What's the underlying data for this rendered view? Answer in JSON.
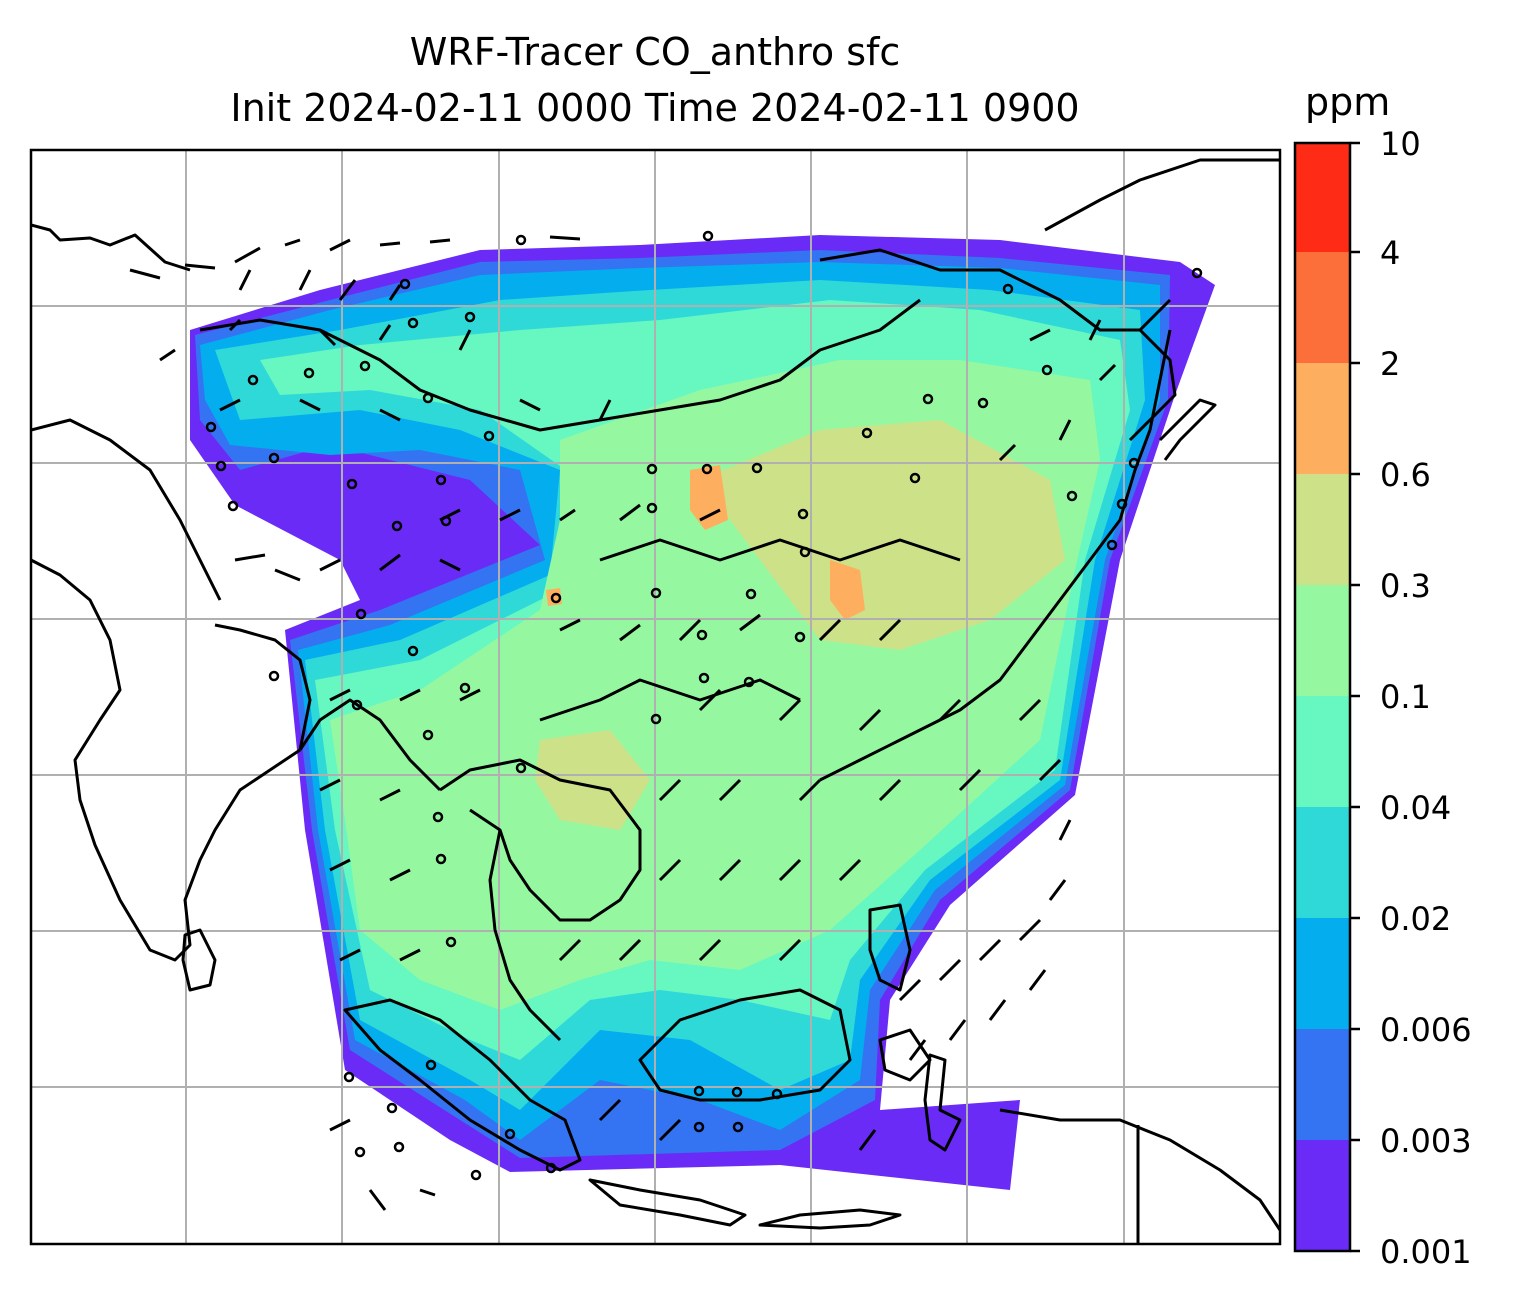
{
  "title": {
    "line1": "WRF-Tracer CO_anthro sfc",
    "line2": "Init 2024-02-11 0000 Time 2024-02-11 0900"
  },
  "colorbar": {
    "unit": "ppm",
    "levels": [
      "0.001",
      "0.003",
      "0.006",
      "0.02",
      "0.04",
      "0.1",
      "0.3",
      "0.6",
      "2",
      "4",
      "10"
    ],
    "colors": [
      "#6a2bf7",
      "#3473f2",
      "#04adee",
      "#2fd9d8",
      "#67f7c1",
      "#95f8a0",
      "#cde189",
      "#fdaf5f",
      "#fd6f3a",
      "#fe2b17"
    ]
  },
  "colors": {
    "gridline": "#b0b0b0",
    "coastline": "#000000",
    "background": "#ffffff"
  }
}
